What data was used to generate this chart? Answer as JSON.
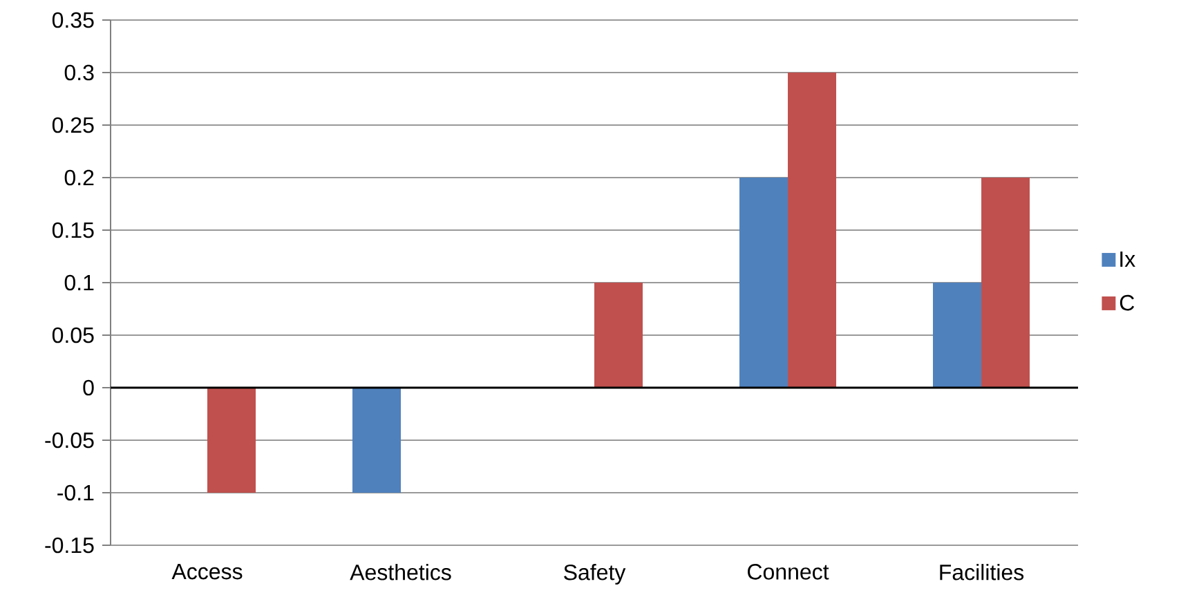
{
  "chart_data": {
    "type": "bar",
    "categories": [
      "Access",
      "Aesthetics",
      "Safety",
      "Connect",
      "Facilities"
    ],
    "series": [
      {
        "name": "Ix",
        "color": "#4f81bd",
        "values": [
          0,
          -0.1,
          0,
          0.2,
          0.1
        ]
      },
      {
        "name": "C",
        "color": "#c0504d",
        "values": [
          -0.1,
          0,
          0.1,
          0.3,
          0.2
        ]
      }
    ],
    "ylim": [
      -0.15,
      0.35
    ],
    "yticks": [
      -0.15,
      -0.1,
      -0.05,
      0,
      0.05,
      0.1,
      0.15,
      0.2,
      0.25,
      0.3,
      0.35
    ],
    "grid": "y",
    "legend": "right"
  }
}
